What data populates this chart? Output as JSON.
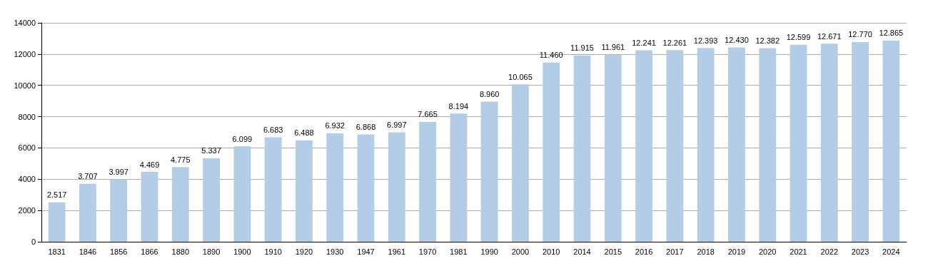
{
  "chart_data": {
    "type": "bar",
    "categories": [
      "1831",
      "1846",
      "1856",
      "1866",
      "1880",
      "1890",
      "1900",
      "1910",
      "1920",
      "1930",
      "1947",
      "1961",
      "1970",
      "1981",
      "1990",
      "2000",
      "2010",
      "2014",
      "2015",
      "2016",
      "2017",
      "2018",
      "2019",
      "2020",
      "2021",
      "2022",
      "2023",
      "2024"
    ],
    "values": [
      2517,
      3707,
      3997,
      4469,
      4775,
      5337,
      6099,
      6683,
      6488,
      6932,
      6868,
      6997,
      7665,
      8194,
      8960,
      10065,
      11460,
      11915,
      11961,
      12241,
      12261,
      12393,
      12430,
      12382,
      12599,
      12671,
      12770,
      12865
    ],
    "value_labels": [
      "2.517",
      "3.707",
      "3.997",
      "4.469",
      "4.775",
      "5.337",
      "6.099",
      "6.683",
      "6.488",
      "6.932",
      "6.868",
      "6.997",
      "7.665",
      "8.194",
      "8.960",
      "10.065",
      "11.460",
      "11.915",
      "11.961",
      "12.241",
      "12.261",
      "12.393",
      "12.430",
      "12.382",
      "12.599",
      "12.671",
      "12.770",
      "12.865"
    ],
    "color": "#b3cde6",
    "ylim": [
      0,
      14000
    ],
    "yticks": [
      0,
      2000,
      4000,
      6000,
      8000,
      10000,
      12000,
      14000
    ],
    "grid": "y"
  }
}
